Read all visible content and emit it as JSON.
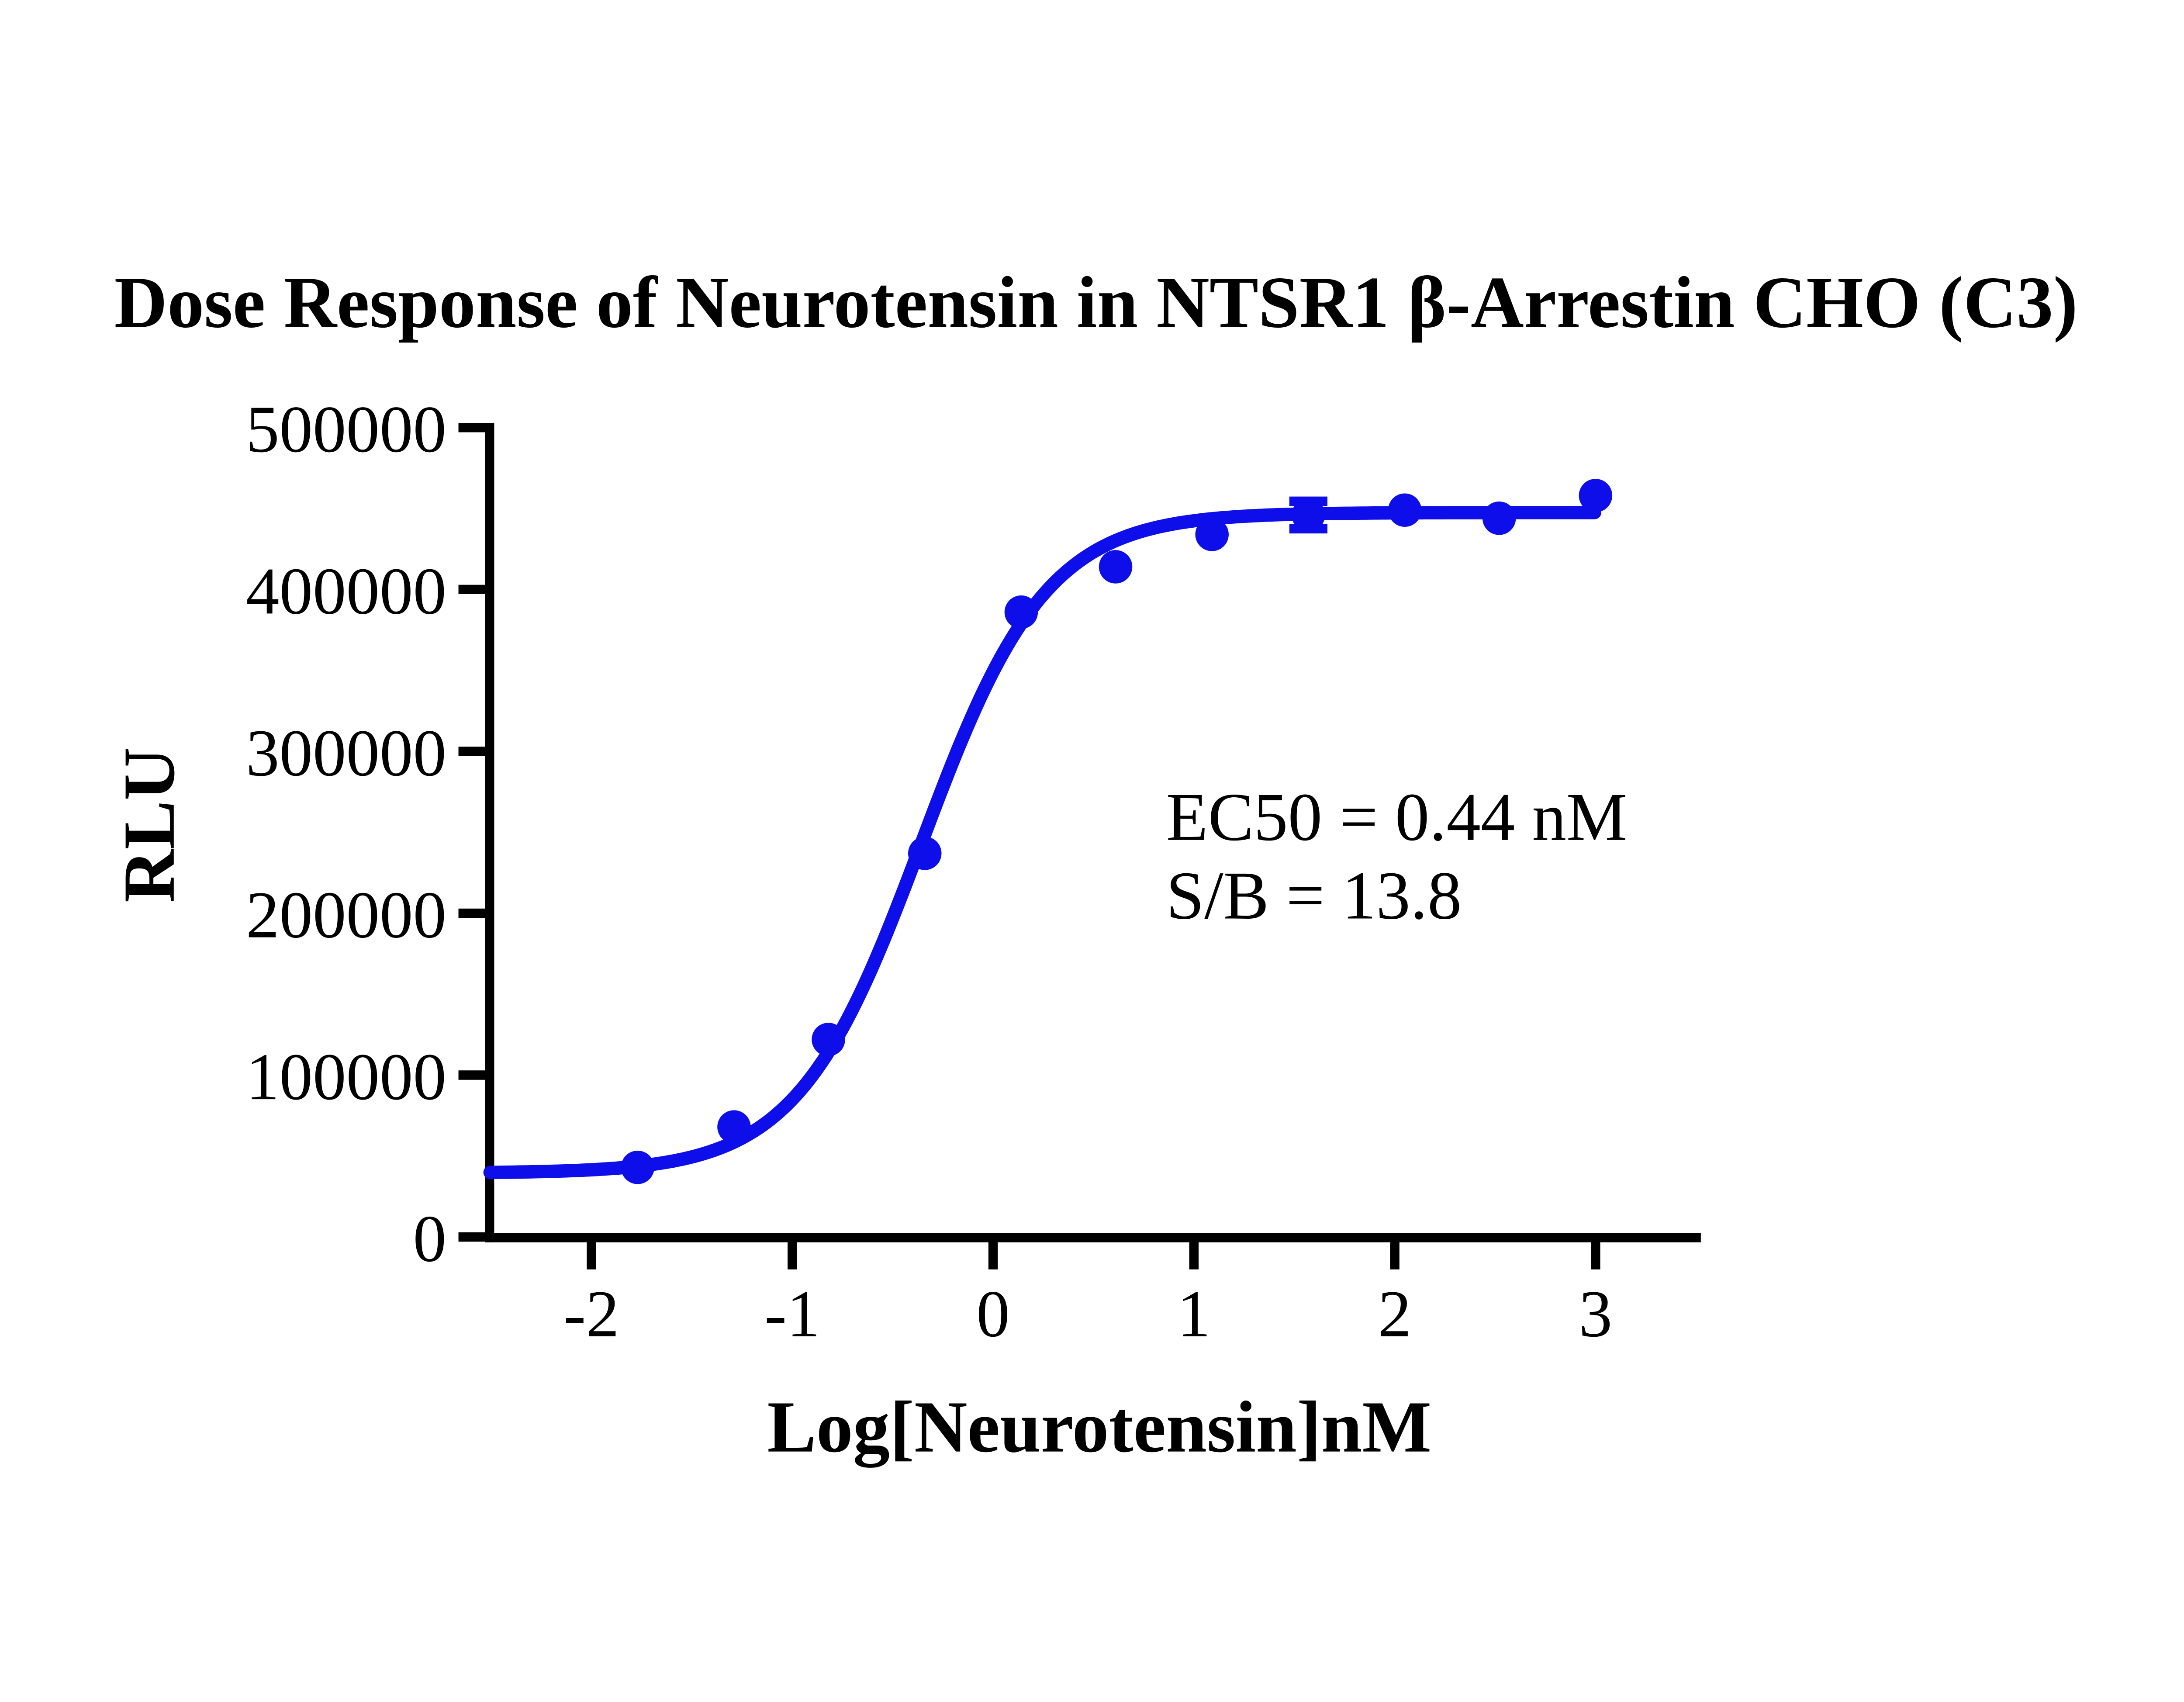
{
  "figure": {
    "colors": {
      "curve": "#0E0EEB",
      "axis": "#000000",
      "text": "#000000",
      "background": "#FFFFFF"
    }
  },
  "chart_data": {
    "type": "scatter",
    "title": "Dose Response of Neurotensin in NTSR1 β-Arrestin CHO (C3)",
    "xlabel": "Log[Neurotensin]nM",
    "ylabel": "RLU",
    "x_ticks": [
      -2,
      -1,
      0,
      1,
      2,
      3
    ],
    "y_ticks": [
      0,
      100000,
      200000,
      300000,
      400000,
      500000
    ],
    "xlim": [
      -2.51,
      3.55
    ],
    "ylim": [
      0,
      500000
    ],
    "grid": false,
    "legend": "none",
    "series": [
      {
        "name": "Neurotensin",
        "x": [
          -1.77,
          -1.29,
          -0.82,
          -0.34,
          0.14,
          0.61,
          1.09,
          1.57,
          2.05,
          2.52,
          3.0
        ],
        "y": [
          43000,
          68000,
          122000,
          237000,
          386000,
          414000,
          434000,
          446000,
          449000,
          444000,
          458000
        ],
        "y_error": [
          null,
          null,
          null,
          null,
          null,
          null,
          null,
          8500,
          null,
          null,
          null
        ]
      }
    ],
    "fit_curve": {
      "model": "4PL",
      "bottom": 39500,
      "top": 447500,
      "log_ec50": -0.356,
      "hill_slope": 1.4,
      "x_range": [
        -2.505,
        3.0
      ]
    },
    "annotations": [
      "EC50 = 0.44 nM",
      "S/B = 13.8"
    ],
    "ec50_nM": 0.44,
    "signal_to_background": 13.8
  }
}
